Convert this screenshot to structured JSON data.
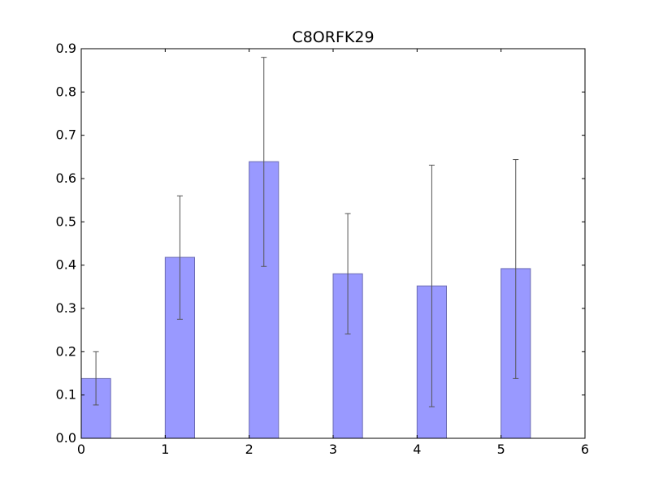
{
  "chart_data": {
    "type": "bar",
    "title": "C8ORFK29",
    "xlabel": "",
    "ylabel": "",
    "x": [
      0,
      1,
      2,
      3,
      4,
      5
    ],
    "values": [
      0.138,
      0.418,
      0.639,
      0.38,
      0.352,
      0.392
    ],
    "error_low": [
      0.077,
      0.275,
      0.397,
      0.241,
      0.073,
      0.138
    ],
    "error_high": [
      0.2,
      0.56,
      0.88,
      0.519,
      0.631,
      0.644
    ],
    "bar_width": 0.35,
    "xlim": [
      0,
      6
    ],
    "ylim": [
      0,
      0.9
    ],
    "x_ticks": [
      "0",
      "1",
      "2",
      "3",
      "4",
      "5",
      "6"
    ],
    "y_ticks": [
      "0.0",
      "0.1",
      "0.2",
      "0.3",
      "0.4",
      "0.5",
      "0.6",
      "0.7",
      "0.8",
      "0.9"
    ],
    "grid": false,
    "colors": {
      "bar_fill": "#9999ff",
      "bar_stroke": "#6b6bb3",
      "errorbar": "#555555",
      "axis": "#000000"
    }
  }
}
